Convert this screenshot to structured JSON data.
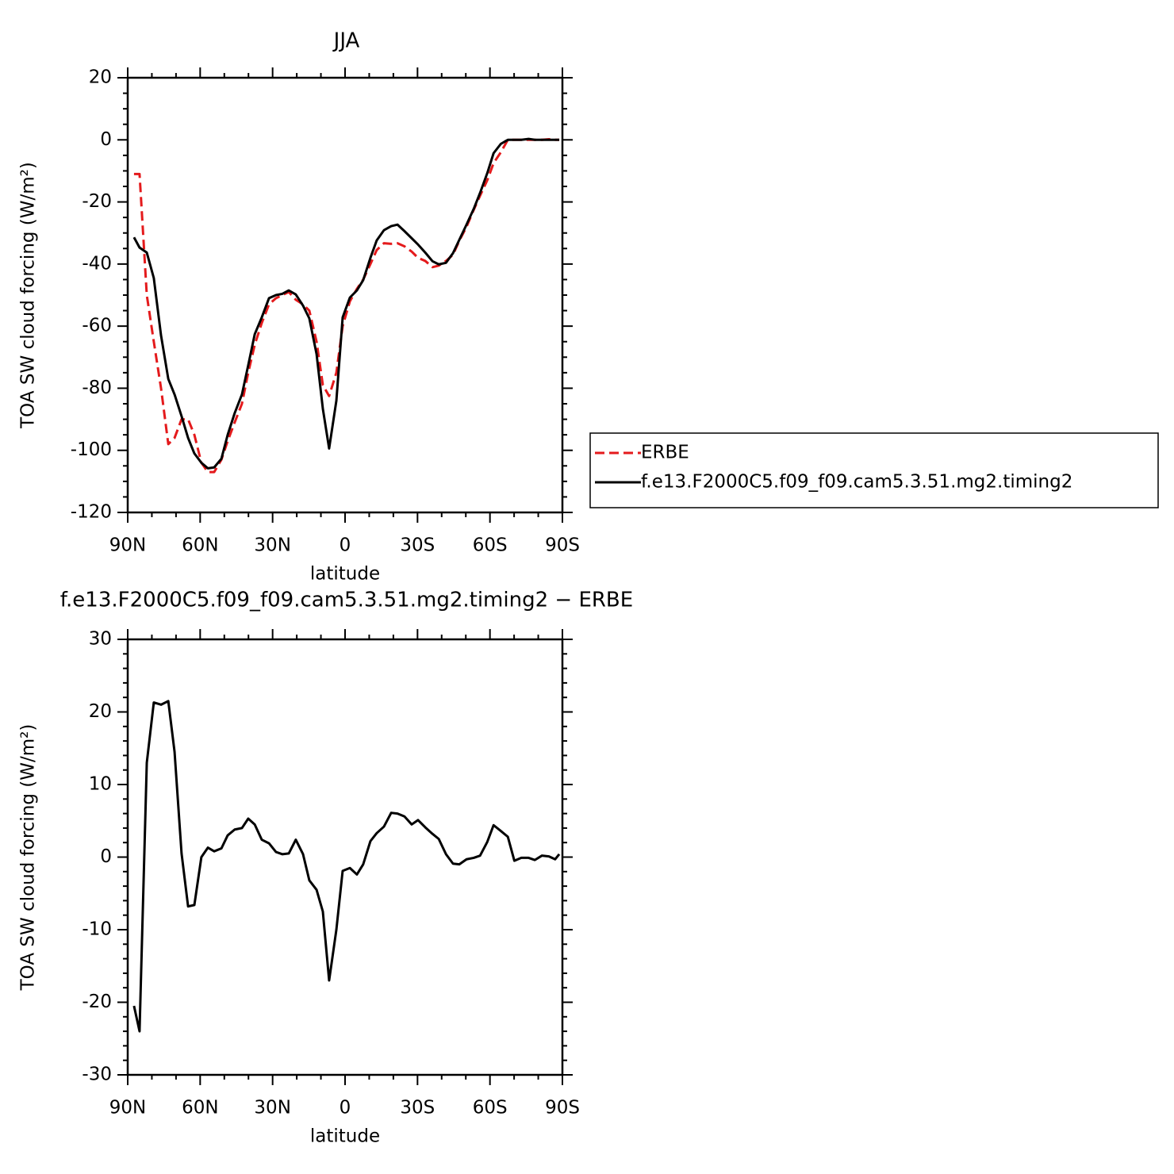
{
  "chart_data": [
    {
      "type": "line",
      "title": "JJA",
      "xlabel": "latitude",
      "ylabel": "TOA SW cloud forcing (W/m²)",
      "x": [
        87.4,
        85.1,
        82.1,
        79.2,
        76.2,
        73.2,
        70.6,
        67.7,
        65,
        62.4,
        59.5,
        56.8,
        54.2,
        51.2,
        48.6,
        45.7,
        42.7,
        40.1,
        37.4,
        34.5,
        31.5,
        28.6,
        26,
        23.3,
        20.4,
        17.4,
        14.8,
        11.8,
        9.2,
        6.6,
        3.6,
        1,
        -2,
        -4.9,
        -7.5,
        -10.5,
        -13.1,
        -16.1,
        -19.1,
        -21.7,
        -24.6,
        -27.6,
        -30.2,
        -33.2,
        -36.2,
        -38.8,
        -41.8,
        -44.7,
        -47.3,
        -50.3,
        -53.3,
        -55.9,
        -58.9,
        -61.5,
        -64.5,
        -67.4,
        -70.1,
        -73,
        -76,
        -78.6,
        -81.5,
        -84.4,
        -87,
        -88.7
      ],
      "series": [
        {
          "name": "ERBE",
          "color": "#e41a1c",
          "style": "dashed",
          "values": [
            -11,
            -11,
            -50,
            -65,
            -80,
            -98,
            -96,
            -90,
            -90,
            -95,
            -104,
            -107,
            -107,
            -103,
            -97,
            -91,
            -85,
            -75,
            -66,
            -59,
            -53,
            -51,
            -50,
            -49,
            -51.5,
            -53,
            -55,
            -65,
            -79,
            -82.5,
            -75,
            -60,
            -52,
            -48,
            -45,
            -40,
            -35.5,
            -33.3,
            -33.5,
            -33.3,
            -34.3,
            -36,
            -38,
            -39,
            -41,
            -40.5,
            -39,
            -37,
            -32.5,
            -28,
            -22.5,
            -18,
            -13,
            -7.5,
            -4,
            0,
            0,
            0,
            0,
            0,
            0,
            0.2,
            0,
            0
          ]
        },
        {
          "name": "f.e13.F2000C5.f09_f09.cam5.3.51.mg2.timing2",
          "color": "#000000",
          "style": "solid",
          "values": [
            -31.4,
            -34.7,
            -36.3,
            -44.5,
            -63,
            -77,
            -82,
            -89,
            -96,
            -101,
            -104,
            -105.8,
            -105.5,
            -102.7,
            -95,
            -88,
            -82,
            -72.6,
            -62.6,
            -57.2,
            -51,
            -50,
            -49.6,
            -48.5,
            -49.8,
            -53.4,
            -57.5,
            -69,
            -86.6,
            -99.4,
            -84,
            -57.2,
            -50.8,
            -48.5,
            -45.2,
            -38,
            -32.4,
            -29.1,
            -27.8,
            -27.3,
            -29.4,
            -31.7,
            -33.7,
            -36.3,
            -39.1,
            -40.1,
            -39.6,
            -36.5,
            -32.2,
            -27.3,
            -22.2,
            -17.1,
            -10.7,
            -4.3,
            -1.3,
            0,
            0,
            0,
            0.3,
            0,
            0,
            0,
            0,
            0
          ]
        }
      ],
      "xlim": [
        90,
        -90
      ],
      "xticks": [
        {
          "value": 90,
          "label": "90N"
        },
        {
          "value": 60,
          "label": "60N"
        },
        {
          "value": 30,
          "label": "30N"
        },
        0,
        {
          "value": -30,
          "label": "30S"
        },
        {
          "value": -60,
          "label": "60S"
        },
        {
          "value": -90,
          "label": "90S"
        }
      ],
      "ylim": [
        -120,
        20
      ],
      "yticks": [
        -120,
        -100,
        -80,
        -60,
        -40,
        -20,
        0,
        20
      ],
      "legend": "right"
    },
    {
      "type": "line",
      "title": "f.e13.F2000C5.f09_f09.cam5.3.51.mg2.timing2 − ERBE",
      "xlabel": "latitude",
      "ylabel": "TOA SW cloud forcing (W/m²)",
      "x": [
        87.4,
        85.1,
        82.1,
        79.2,
        76.2,
        73.2,
        70.6,
        67.7,
        65,
        62.4,
        59.5,
        56.8,
        54.2,
        51.2,
        48.6,
        45.7,
        42.7,
        40.1,
        37.4,
        34.5,
        31.5,
        28.6,
        26,
        23.3,
        20.4,
        17.4,
        14.8,
        11.8,
        9.2,
        6.6,
        3.6,
        1,
        -2,
        -4.9,
        -7.5,
        -10.5,
        -13.1,
        -16.1,
        -19.1,
        -21.7,
        -24.6,
        -27.6,
        -30.2,
        -33.2,
        -36.2,
        -38.8,
        -41.8,
        -44.7,
        -47.3,
        -50.3,
        -53.3,
        -55.9,
        -58.9,
        -61.5,
        -64.5,
        -67.4,
        -70.1,
        -73,
        -76,
        -78.6,
        -81.5,
        -84.4,
        -87,
        -88.7
      ],
      "series": [
        {
          "color": "#000000",
          "style": "solid",
          "values": [
            -20.5,
            -24,
            13,
            21.3,
            21,
            21.5,
            14.5,
            0.5,
            -6.8,
            -6.6,
            0,
            1.3,
            0.8,
            1.2,
            3,
            3.8,
            4,
            5.3,
            4.5,
            2.4,
            1.9,
            0.7,
            0.4,
            0.5,
            2.4,
            0.4,
            -3.2,
            -4.5,
            -7.5,
            -17,
            -10,
            -1.9,
            -1.5,
            -2.4,
            -1,
            2.2,
            3.3,
            4.2,
            6.1,
            6,
            5.6,
            4.5,
            5.1,
            4.1,
            3.2,
            2.5,
            0.4,
            -0.9,
            -1,
            -0.3,
            -0.1,
            0.2,
            2.1,
            4.4,
            3.6,
            2.8,
            -0.5,
            -0.1,
            -0.1,
            -0.4,
            0.2,
            0.1,
            -0.3,
            0.4
          ]
        }
      ],
      "xlim": [
        90,
        -90
      ],
      "xticks": [
        {
          "value": 90,
          "label": "90N"
        },
        {
          "value": 60,
          "label": "60N"
        },
        {
          "value": 30,
          "label": "30N"
        },
        0,
        {
          "value": -30,
          "label": "30S"
        },
        {
          "value": -60,
          "label": "60S"
        },
        {
          "value": -90,
          "label": "90S"
        }
      ],
      "ylim": [
        -30,
        30
      ],
      "yticks": [
        -30,
        -20,
        -10,
        0,
        10,
        20,
        30
      ]
    }
  ]
}
